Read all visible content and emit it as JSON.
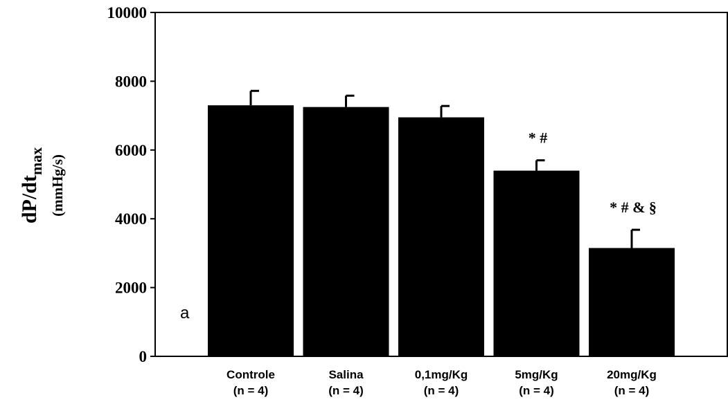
{
  "chart_data": {
    "type": "bar",
    "ylabel": "dP/dt",
    "ylabel_subscript": "max",
    "ylabel_unit": "(mmHg/s)",
    "ylim": [
      0,
      10000
    ],
    "yticks": [
      "0",
      "2000",
      "4000",
      "6000",
      "8000",
      "10000"
    ],
    "panel_label": "a",
    "grid": false,
    "categories": [
      {
        "name": "Controle",
        "n": "(n = 4)"
      },
      {
        "name": "Salina",
        "n": "(n = 4)"
      },
      {
        "name": "0,1mg/Kg",
        "n": "(n = 4)"
      },
      {
        "name": "5mg/Kg",
        "n": "(n = 4)"
      },
      {
        "name": "20mg/Kg",
        "n": "(n = 4)"
      }
    ],
    "values": [
      7300,
      7250,
      6950,
      5400,
      3150
    ],
    "errors": [
      420,
      330,
      330,
      300,
      530
    ],
    "annotations": [
      "",
      "",
      "",
      "* #",
      "* # & §"
    ],
    "bar_color": "#000000"
  }
}
